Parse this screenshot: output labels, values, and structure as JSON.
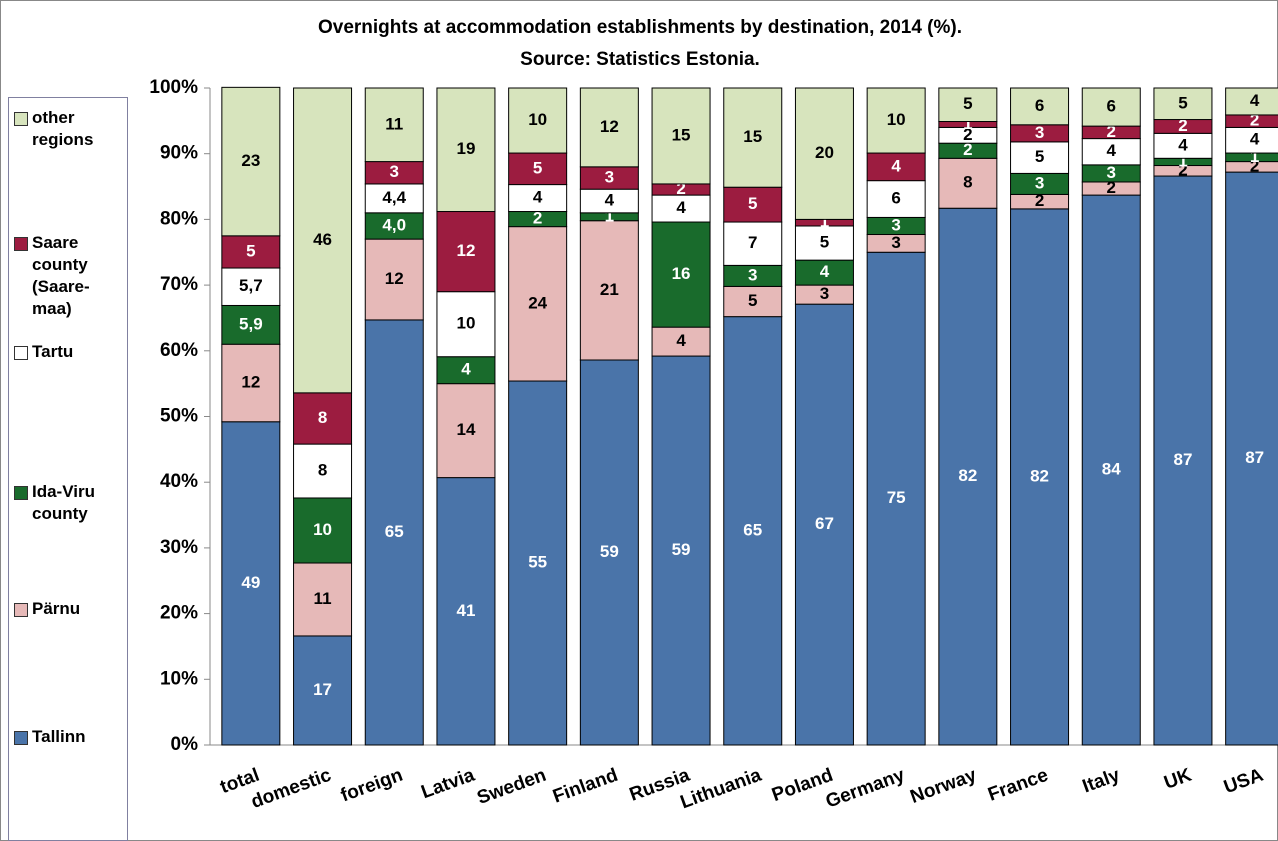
{
  "chart_data": {
    "type": "stacked_bar_100",
    "title": "Overnights at accommodation establishments by destination, 2014 (%).",
    "subtitle": "Source: Statistics Estonia.",
    "categories": [
      "total",
      "domestic",
      "foreign",
      "Latvia",
      "Sweden",
      "Finland",
      "Russia",
      "Lithuania",
      "Poland",
      "Germany",
      "Norway",
      "France",
      "Italy",
      "UK",
      "USA"
    ],
    "ylim": [
      0,
      100
    ],
    "yticks": [
      {
        "value": 0,
        "label": "0%"
      },
      {
        "value": 10,
        "label": "10%"
      },
      {
        "value": 20,
        "label": "20%"
      },
      {
        "value": 30,
        "label": "30%"
      },
      {
        "value": 40,
        "label": "40%"
      },
      {
        "value": 50,
        "label": "50%"
      },
      {
        "value": 60,
        "label": "60%"
      },
      {
        "value": 70,
        "label": "70%"
      },
      {
        "value": 80,
        "label": "80%"
      },
      {
        "value": 90,
        "label": "90%"
      },
      {
        "value": 100,
        "label": "100%"
      }
    ],
    "grid": false,
    "legend": "left",
    "series": [
      {
        "name": "Tallinn",
        "color": "#4a74a9",
        "label_color": "#ffffff",
        "values": [
          49.2,
          16.6,
          64.7,
          40.7,
          55.4,
          58.6,
          59.2,
          65.2,
          67.1,
          75.0,
          81.7,
          81.6,
          83.7,
          86.6,
          87.2
        ],
        "value_labels": [
          "49",
          "17",
          "65",
          "41",
          "55",
          "59",
          "59",
          "65",
          "67",
          "75",
          "82",
          "82",
          "84",
          "87",
          "87"
        ]
      },
      {
        "name": "Pärnu",
        "color": "#e6b9b8",
        "label_color": "#000000",
        "values": [
          11.8,
          11.1,
          12.3,
          14.3,
          23.5,
          21.2,
          4.4,
          4.6,
          2.9,
          2.7,
          7.6,
          2.2,
          2.0,
          1.6,
          1.6
        ],
        "value_labels": [
          "12",
          "11",
          "12",
          "14",
          "24",
          "21",
          "4",
          "5",
          "3",
          "3",
          "8",
          "2",
          "2",
          "2",
          "2"
        ]
      },
      {
        "name": "Ida-Viru county",
        "color": "#196b2c",
        "label_color": "#ffffff",
        "values": [
          5.9,
          9.9,
          4.0,
          4.1,
          2.3,
          1.2,
          16.0,
          3.2,
          3.8,
          2.6,
          2.3,
          3.2,
          2.6,
          1.1,
          1.3
        ],
        "value_labels": [
          "5,9",
          "10",
          "4,0",
          "4",
          "2",
          "1",
          "16",
          "3",
          "4",
          "3",
          "2",
          "3",
          "3",
          "1",
          "1"
        ]
      },
      {
        "name": "Tartu",
        "color": "#ffffff",
        "label_color": "#000000",
        "values": [
          5.7,
          8.2,
          4.4,
          9.9,
          4.1,
          3.6,
          4.1,
          6.6,
          5.2,
          5.6,
          2.4,
          4.8,
          4.0,
          3.8,
          3.9
        ],
        "value_labels": [
          "5,7",
          "8",
          "4,4",
          "10",
          "4",
          "4",
          "4",
          "7",
          "5",
          "6",
          "2",
          "5",
          "4",
          "4",
          "4"
        ]
      },
      {
        "name": "Saare county (Saare-maa)",
        "color": "#9c1c40",
        "label_color": "#ffffff",
        "values": [
          4.9,
          7.8,
          3.4,
          12.2,
          4.8,
          3.4,
          1.7,
          5.3,
          1.0,
          4.2,
          0.9,
          2.6,
          1.9,
          2.1,
          1.9
        ],
        "value_labels": [
          "5",
          "8",
          "3",
          "12",
          "5",
          "3",
          "2",
          "5",
          "1",
          "4",
          "1",
          "3",
          "2",
          "2",
          "2"
        ]
      },
      {
        "name": "other regions",
        "color": "#d7e4bd",
        "label_color": "#000000",
        "values": [
          22.6,
          46.4,
          11.2,
          18.8,
          9.9,
          12.0,
          14.6,
          15.1,
          20.0,
          9.9,
          5.1,
          5.6,
          5.8,
          4.8,
          4.1
        ],
        "value_labels": [
          "23",
          "46",
          "11",
          "19",
          "10",
          "12",
          "15",
          "15",
          "20",
          "10",
          "5",
          "6",
          "6",
          "5",
          "4"
        ]
      }
    ]
  }
}
